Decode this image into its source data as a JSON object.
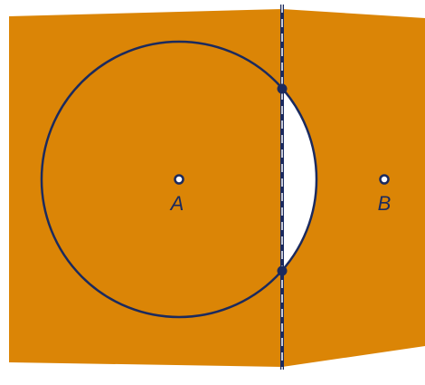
{
  "points": [
    {
      "label": "A"
    },
    {
      "label": "B"
    }
  ]
}
